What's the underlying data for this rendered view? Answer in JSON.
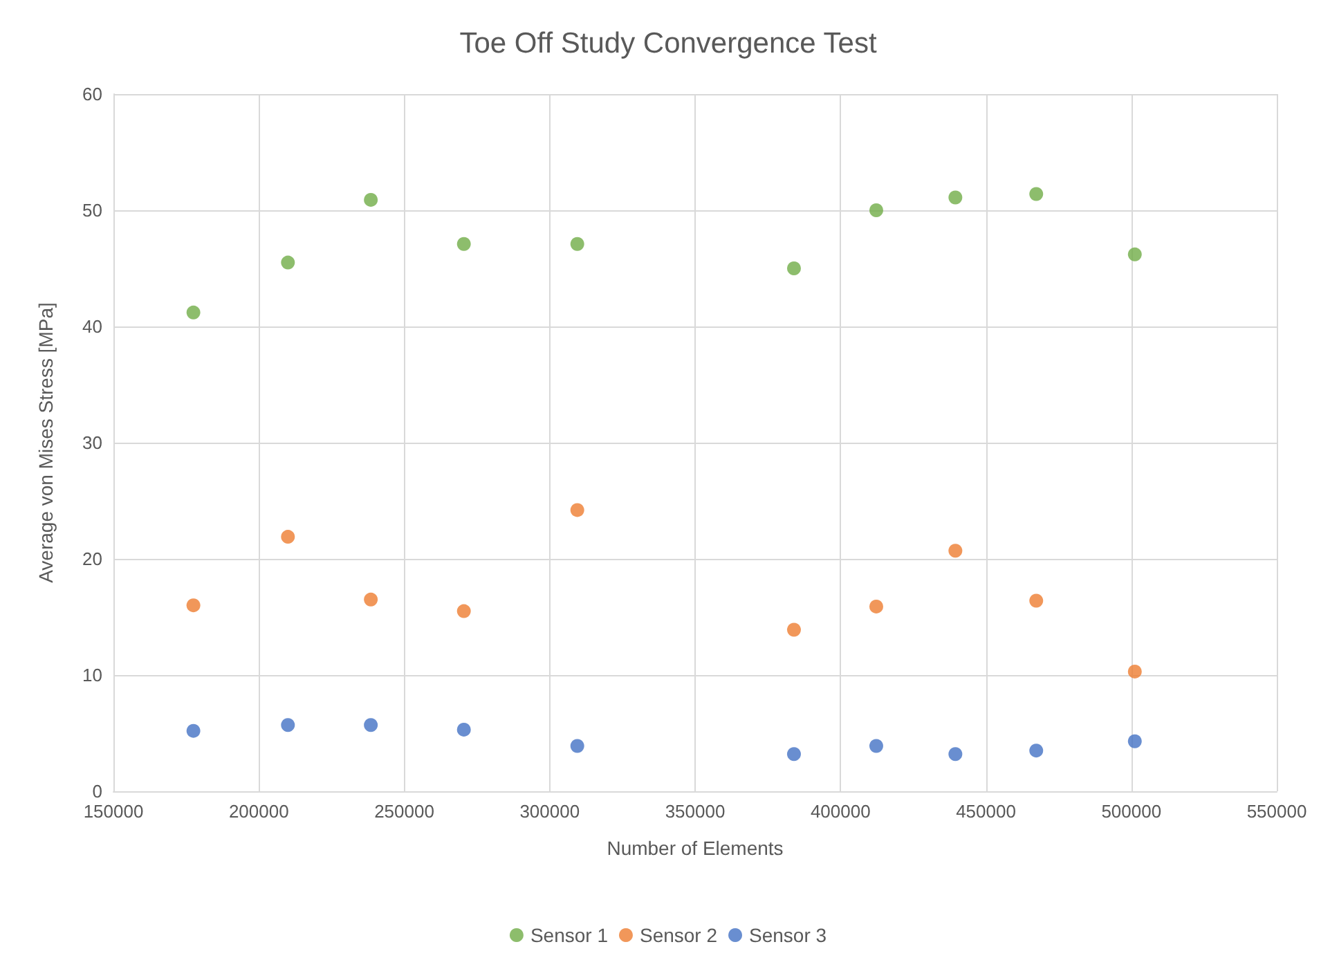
{
  "chart_data": {
    "type": "scatter",
    "title": "Toe Off Study Convergence Test",
    "xlabel": "Number of Elements",
    "ylabel": "Average von Mises Stress [MPa]",
    "x": [
      177500,
      210000,
      238500,
      270500,
      309500,
      384000,
      412300,
      439500,
      467300,
      501200
    ],
    "series": [
      {
        "name": "Sensor 1",
        "color": "#70ad47",
        "values": [
          41.2,
          45.5,
          50.9,
          47.1,
          47.1,
          45.0,
          50.0,
          51.1,
          51.4,
          46.2
        ]
      },
      {
        "name": "Sensor 2",
        "color": "#ed7d31",
        "values": [
          16.0,
          21.9,
          16.5,
          15.5,
          24.2,
          13.9,
          15.9,
          20.7,
          16.4,
          10.3
        ]
      },
      {
        "name": "Sensor 3",
        "color": "#4472c4",
        "values": [
          5.2,
          5.7,
          5.7,
          5.3,
          3.9,
          3.2,
          3.9,
          3.2,
          3.5,
          4.3
        ]
      }
    ],
    "xlim": [
      150000,
      550000
    ],
    "xticks": [
      150000,
      200000,
      250000,
      300000,
      350000,
      400000,
      450000,
      500000,
      550000
    ],
    "ylim": [
      0,
      60
    ],
    "yticks": [
      0,
      10,
      20,
      30,
      40,
      50,
      60
    ],
    "grid": true,
    "legend": "bottom",
    "marker": "circle"
  }
}
